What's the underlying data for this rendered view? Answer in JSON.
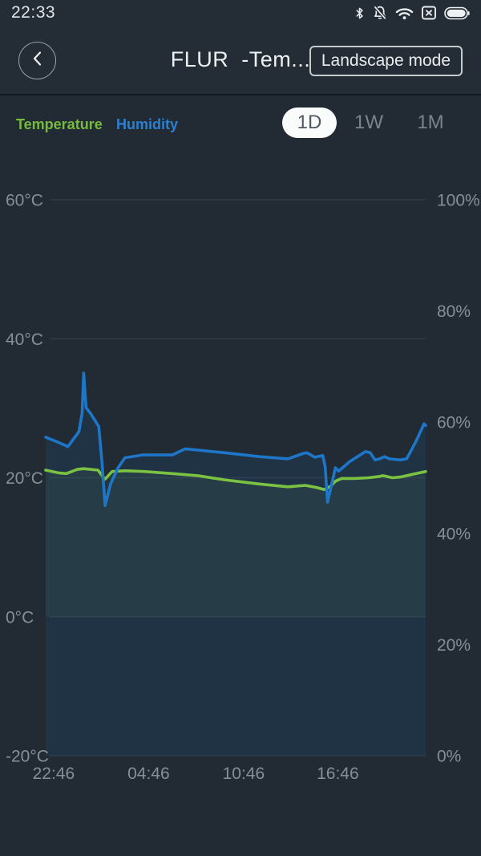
{
  "status_bar": {
    "time": "22:33",
    "icons": [
      "bluetooth-icon",
      "notifications-muted-icon",
      "wifi-icon",
      "no-sim-icon",
      "battery-icon"
    ]
  },
  "header": {
    "title": "FLUR  -Tem...",
    "landscape_button": "Landscape mode"
  },
  "legend": {
    "temperature": {
      "label": "Temperature",
      "color": "#76ba3e"
    },
    "humidity": {
      "label": "Humidity",
      "color": "#2b80d2"
    }
  },
  "range_tabs": {
    "items": [
      {
        "label": "1D",
        "active": true
      },
      {
        "label": "1W",
        "active": false
      },
      {
        "label": "1M",
        "active": false
      }
    ]
  },
  "chart_data": {
    "type": "line",
    "background": "#222b33",
    "grid": {
      "color": "rgba(255,255,255,0.07)"
    },
    "x_axis": {
      "unit": "time_of_day",
      "range_hours": [
        0,
        24
      ],
      "ticks": [
        {
          "t": 0.5,
          "label": "22:46"
        },
        {
          "t": 6.5,
          "label": "04:46"
        },
        {
          "t": 12.5,
          "label": "10:46"
        },
        {
          "t": 18.45,
          "label": "16:46"
        }
      ]
    },
    "y_axis_left": {
      "name": "Temperature",
      "unit": "°C",
      "range": [
        -20,
        60
      ],
      "ticks": [
        {
          "v": 60,
          "label": "60°C"
        },
        {
          "v": 40,
          "label": "40°C"
        },
        {
          "v": 20,
          "label": "20°C"
        },
        {
          "v": 0,
          "label": "0°C"
        },
        {
          "v": -20,
          "label": "-20°C"
        }
      ],
      "tick_color": "#858f97"
    },
    "y_axis_right": {
      "name": "Humidity",
      "unit": "%",
      "range": [
        0,
        100
      ],
      "ticks": [
        {
          "v": 100,
          "label": "100%"
        },
        {
          "v": 80,
          "label": "80%"
        },
        {
          "v": 60,
          "label": "60%"
        },
        {
          "v": 40,
          "label": "40%"
        },
        {
          "v": 20,
          "label": "20%"
        },
        {
          "v": 0,
          "label": "0%"
        }
      ],
      "tick_color": "#858f97"
    },
    "series": [
      {
        "name": "Temperature",
        "axis": "left",
        "color": "#7cc242",
        "fill": "rgba(130,195,80,0.07)",
        "fill_to_value": 0,
        "points": [
          [
            0,
            21.1
          ],
          [
            0.8,
            20.7
          ],
          [
            1.3,
            20.6
          ],
          [
            2.0,
            21.2
          ],
          [
            2.4,
            21.3
          ],
          [
            3.3,
            21.1
          ],
          [
            3.6,
            20.2
          ],
          [
            3.75,
            19.8
          ],
          [
            4.2,
            20.9
          ],
          [
            5.0,
            21.0
          ],
          [
            6.2,
            20.9
          ],
          [
            8.0,
            20.6
          ],
          [
            9.6,
            20.3
          ],
          [
            11.3,
            19.7
          ],
          [
            13.5,
            19.1
          ],
          [
            15.3,
            18.7
          ],
          [
            16.4,
            18.9
          ],
          [
            17.1,
            18.6
          ],
          [
            17.6,
            18.3
          ],
          [
            18.0,
            18.8
          ],
          [
            18.3,
            19.5
          ],
          [
            18.7,
            19.9
          ],
          [
            19.5,
            19.9
          ],
          [
            20.4,
            20.0
          ],
          [
            21.1,
            20.2
          ],
          [
            21.3,
            20.3
          ],
          [
            21.9,
            20.0
          ],
          [
            22.4,
            20.1
          ],
          [
            23.4,
            20.6
          ],
          [
            24,
            20.9
          ]
        ]
      },
      {
        "name": "Humidity",
        "axis": "right",
        "color": "#1e76c8",
        "fill": "rgba(28,100,170,0.15)",
        "fill_to_value": 0,
        "points": [
          [
            0,
            57.3
          ],
          [
            0.7,
            56.5
          ],
          [
            1.4,
            55.6
          ],
          [
            2.1,
            58.3
          ],
          [
            2.3,
            61.6
          ],
          [
            2.4,
            68.8
          ],
          [
            2.55,
            62.6
          ],
          [
            2.85,
            61.5
          ],
          [
            3.35,
            59.2
          ],
          [
            3.55,
            53.0
          ],
          [
            3.75,
            45.0
          ],
          [
            4.1,
            48.9
          ],
          [
            4.55,
            51.7
          ],
          [
            5.0,
            53.6
          ],
          [
            6.1,
            54.1
          ],
          [
            8.0,
            54.1
          ],
          [
            8.8,
            55.2
          ],
          [
            11.3,
            54.5
          ],
          [
            13.5,
            53.8
          ],
          [
            15.3,
            53.4
          ],
          [
            16.3,
            54.4
          ],
          [
            16.5,
            54.5
          ],
          [
            17.0,
            53.7
          ],
          [
            17.5,
            54.0
          ],
          [
            17.65,
            52.0
          ],
          [
            17.8,
            45.6
          ],
          [
            18.3,
            51.8
          ],
          [
            18.5,
            51.2
          ],
          [
            19.2,
            52.9
          ],
          [
            19.8,
            54.0
          ],
          [
            20.2,
            54.7
          ],
          [
            20.5,
            54.5
          ],
          [
            20.8,
            53.2
          ],
          [
            21.1,
            53.4
          ],
          [
            21.4,
            53.8
          ],
          [
            21.7,
            53.4
          ],
          [
            22.4,
            53.2
          ],
          [
            22.8,
            53.4
          ],
          [
            23.4,
            56.6
          ],
          [
            23.9,
            59.7
          ],
          [
            24,
            59.4
          ]
        ]
      }
    ]
  }
}
